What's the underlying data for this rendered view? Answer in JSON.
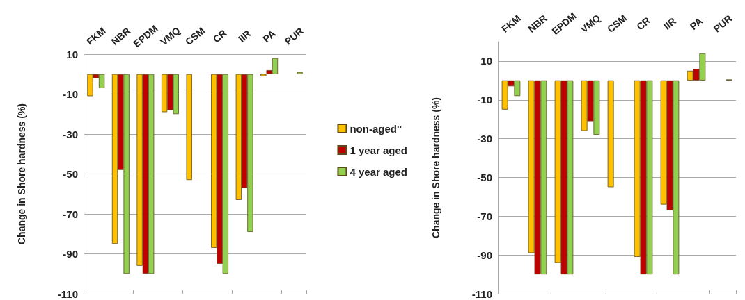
{
  "chart_data": [
    {
      "type": "bar",
      "ylabel": "Change in Shore hardness (%)",
      "categories": [
        "FKM",
        "NBR",
        "EPDM",
        "VMQ",
        "CSM",
        "CR",
        "IIR",
        "PA",
        "PUR"
      ],
      "ylim": [
        -110,
        10
      ],
      "yticks": [
        -110,
        -90,
        -70,
        -50,
        -30,
        -10,
        10
      ],
      "grid": "y",
      "legend": "right",
      "series": [
        {
          "name": "non-aged''",
          "color": "#ffc000",
          "values": [
            -11,
            -85,
            -96,
            -19,
            -53,
            -87,
            -63,
            -1,
            null
          ]
        },
        {
          "name": "1 year aged",
          "color": "#c00000",
          "values": [
            -2,
            -48,
            -100,
            -18,
            null,
            -95,
            -57,
            2,
            null
          ]
        },
        {
          "name": "4 year aged",
          "color": "#92d050",
          "values": [
            -7,
            -100,
            -100,
            -20,
            null,
            -100,
            -79,
            8,
            1
          ]
        }
      ]
    },
    {
      "type": "bar",
      "ylabel": "Change in Shore hardness (%)",
      "categories": [
        "FKM",
        "NBR",
        "EPDM",
        "VMQ",
        "CSM",
        "CR",
        "IIR",
        "PA",
        "PUR"
      ],
      "ylim": [
        -110,
        20
      ],
      "yticks": [
        -110,
        -90,
        -70,
        -50,
        -30,
        -10,
        10
      ],
      "grid": "y",
      "legend": false,
      "series": [
        {
          "color": "#ffc000",
          "values": [
            -15,
            -89,
            -94,
            -26,
            -55,
            -91,
            -64,
            5,
            null
          ]
        },
        {
          "color": "#c00000",
          "values": [
            -3,
            -100,
            -100,
            -21,
            null,
            -100,
            -67,
            6,
            null
          ]
        },
        {
          "color": "#92d050",
          "values": [
            -8,
            -100,
            -100,
            -28,
            null,
            -100,
            -100,
            14,
            0.5
          ]
        }
      ]
    }
  ]
}
